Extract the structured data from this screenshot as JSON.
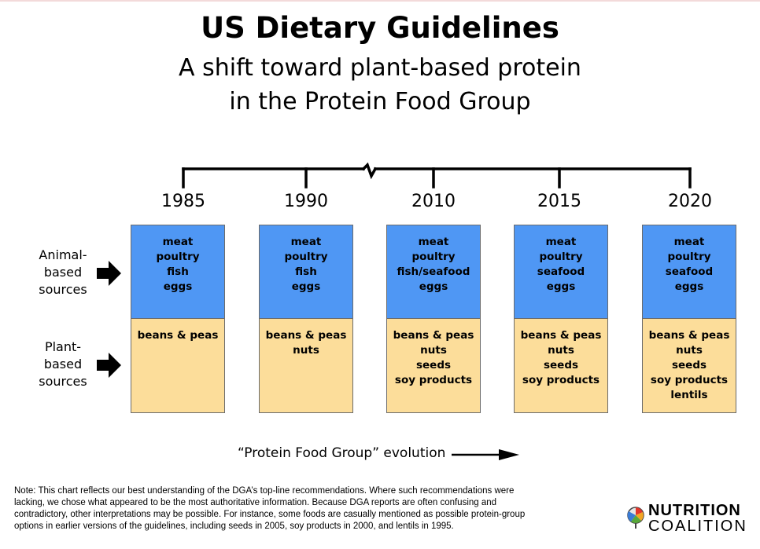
{
  "title": "US Dietary Guidelines",
  "subtitle_line1": "A shift toward plant-based protein",
  "subtitle_line2": "in the Protein Food Group",
  "side_labels": {
    "animal": [
      "Animal-",
      "based",
      "sources"
    ],
    "plant": [
      "Plant-",
      "based",
      "sources"
    ]
  },
  "columns": [
    {
      "year": "1985",
      "animal": [
        "meat",
        "poultry",
        "fish",
        "eggs"
      ],
      "plant": [
        "beans & peas"
      ]
    },
    {
      "year": "1990",
      "animal": [
        "meat",
        "poultry",
        "fish",
        "eggs"
      ],
      "plant": [
        "beans & peas",
        "nuts"
      ]
    },
    {
      "year": "2010",
      "animal": [
        "meat",
        "poultry",
        "fish/seafood",
        "eggs"
      ],
      "plant": [
        "beans & peas",
        "nuts",
        "seeds",
        "soy products"
      ]
    },
    {
      "year": "2015",
      "animal": [
        "meat",
        "poultry",
        "seafood",
        "eggs"
      ],
      "plant": [
        "beans & peas",
        "nuts",
        "seeds",
        "soy products"
      ]
    },
    {
      "year": "2020",
      "animal": [
        "meat",
        "poultry",
        "seafood",
        "eggs"
      ],
      "plant": [
        "beans & peas",
        "nuts",
        "seeds",
        "soy products",
        "lentils"
      ]
    }
  ],
  "evolution_label": "“Protein Food Group” evolution",
  "note_lines": [
    "Note: This chart reflects our best understanding of the DGA’s top-line recommendations. Where such recommendations were",
    "lacking, we chose what appeared to be the most authoritative information. Because DGA reports are often confusing and",
    "contradictory, other interpretations may be possible. For instance, some foods are casually mentioned as possible protein-group",
    "options in earlier versions of the guidelines, including seeds in 2005, soy products in 2000, and lentils in 1995."
  ],
  "logo": {
    "line1": "NUTRITION",
    "line2": "COALITION",
    "icon": "nutrition-coalition-logo-icon"
  },
  "colors": {
    "animal": "#4f97f4",
    "plant": "#fcdd9a"
  }
}
